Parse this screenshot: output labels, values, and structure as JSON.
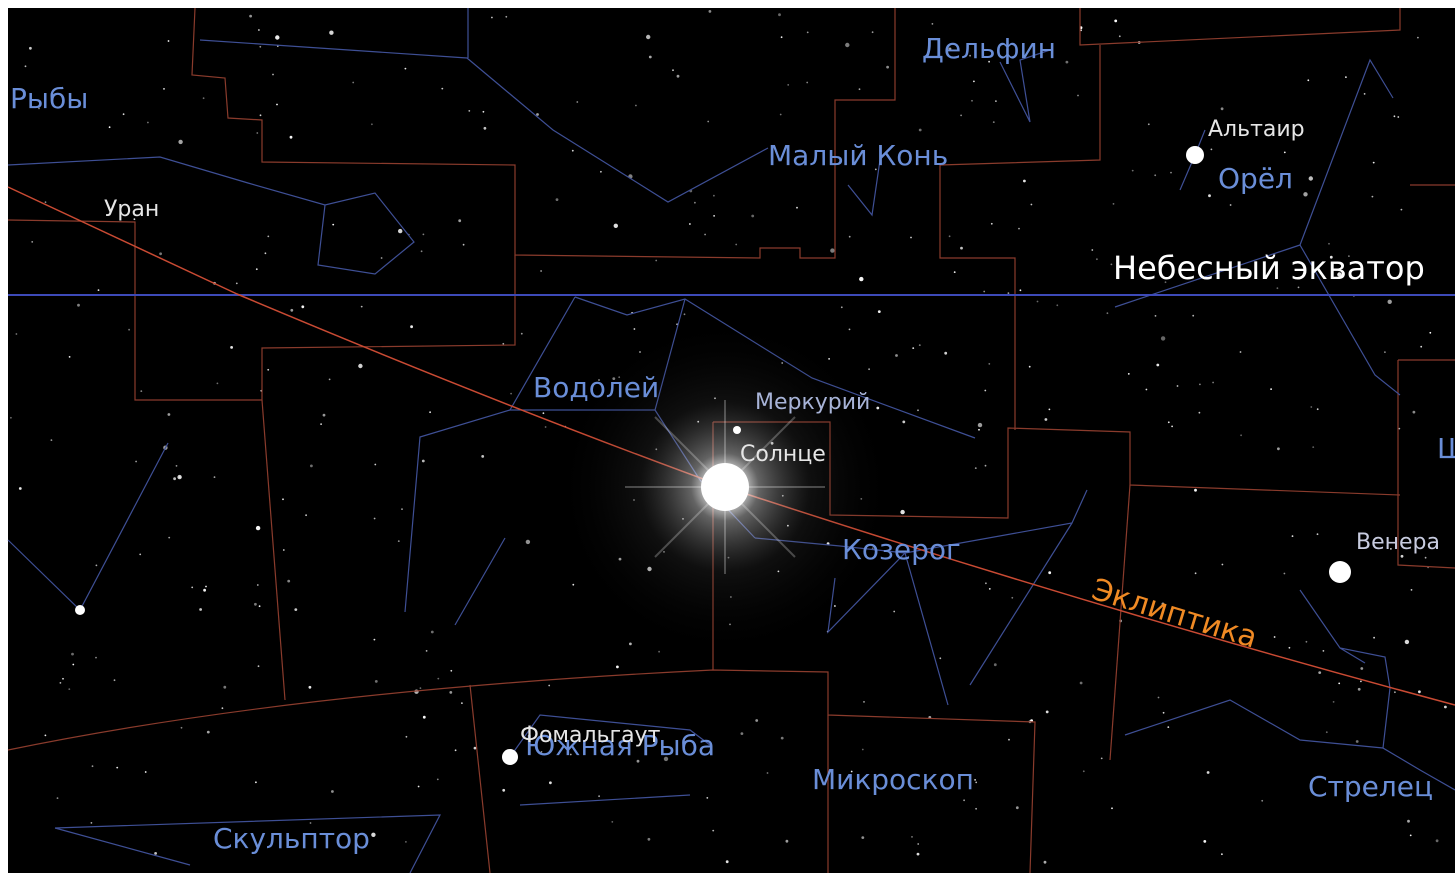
{
  "constellations": [
    "Рыбы",
    "Дельфин",
    "Малый Конь",
    "Орёл",
    "Водолей",
    "Козерог",
    "Южная Рыба",
    "Микроскоп",
    "Скульптор",
    "Стрелец",
    "Щ"
  ],
  "stars": [
    "Альтаир",
    "Фомальгаут"
  ],
  "planets": [
    "Уран",
    "Меркурий",
    "Солнце",
    "Венера"
  ],
  "lines": {
    "equator": "Небесный экватор",
    "ecliptic": "Эклиптика"
  }
}
